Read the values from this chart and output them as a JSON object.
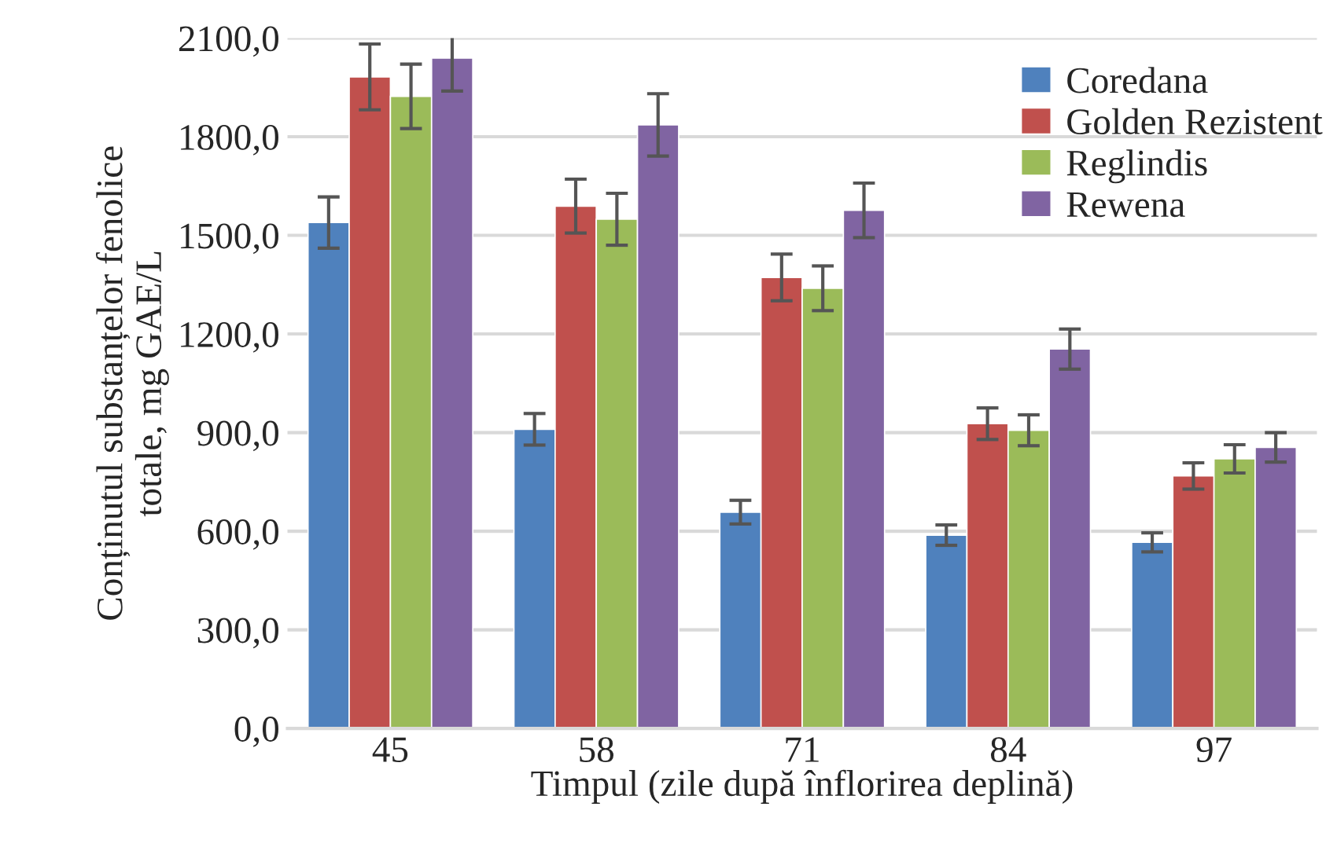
{
  "chart_data": {
    "type": "bar",
    "xlabel": "Timpul (zile după înflorirea deplină)",
    "ylabel": "Conținutul substanțelor fenolice\ntotale, mg GAE/L",
    "categories": [
      "45",
      "58",
      "71",
      "84",
      "97"
    ],
    "series": [
      {
        "name": "Coredana",
        "color": "#4f81bd",
        "values": [
          1539,
          910,
          658,
          588,
          566
        ],
        "errors": [
          78,
          48,
          36,
          31,
          29
        ]
      },
      {
        "name": "Golden Rezistent",
        "color": "#c0504d",
        "values": [
          1982,
          1589,
          1372,
          927,
          768
        ],
        "errors": [
          100,
          82,
          71,
          48,
          40
        ]
      },
      {
        "name": "Reglindis",
        "color": "#9bbb59",
        "values": [
          1923,
          1549,
          1339,
          907,
          820
        ],
        "errors": [
          98,
          79,
          68,
          47,
          43
        ]
      },
      {
        "name": "Rewena",
        "color": "#8064a2",
        "values": [
          2039,
          1836,
          1576,
          1154,
          855
        ],
        "errors": [
          100,
          95,
          83,
          61,
          45
        ]
      }
    ],
    "ylim": [
      0,
      2100
    ],
    "yticks": [
      {
        "value": 0,
        "label": "0,0"
      },
      {
        "value": 300,
        "label": "300,0"
      },
      {
        "value": 600,
        "label": "600,0"
      },
      {
        "value": 900,
        "label": "900,0"
      },
      {
        "value": 1200,
        "label": "1200,0"
      },
      {
        "value": 1500,
        "label": "1500,0"
      },
      {
        "value": 1800,
        "label": "1800,0"
      },
      {
        "value": 2100,
        "label": "2100,0"
      }
    ],
    "grid": "y",
    "legend": "top right"
  }
}
